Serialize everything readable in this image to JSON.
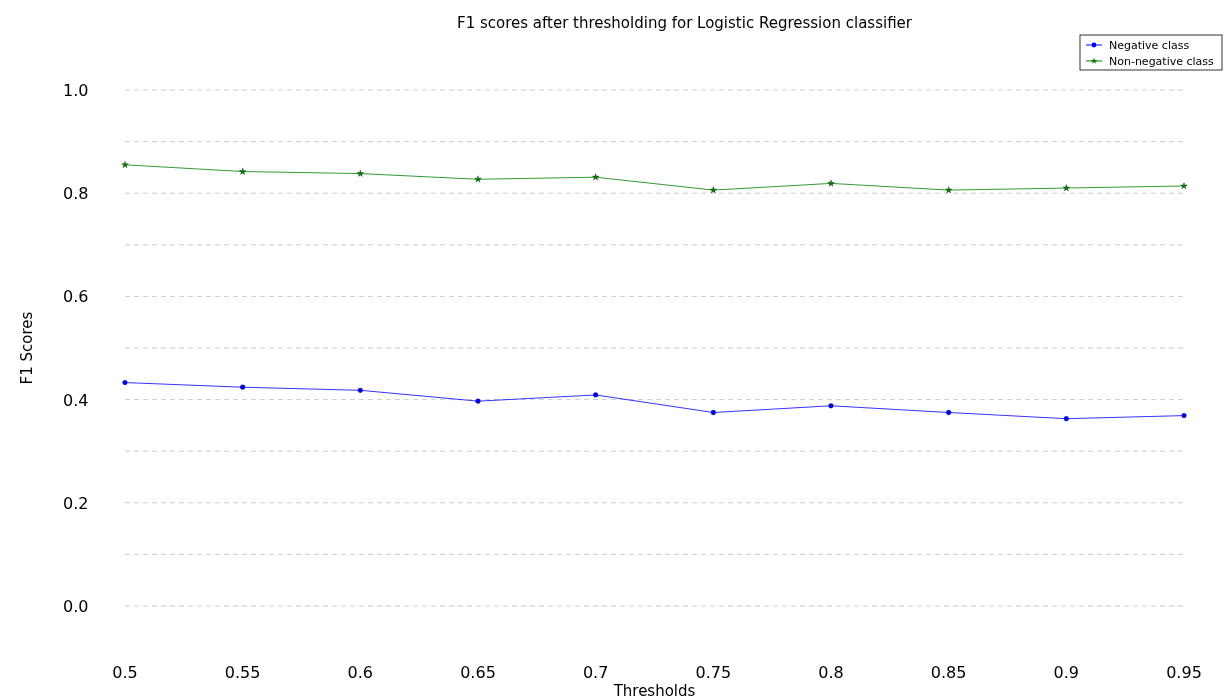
{
  "chart_data": {
    "type": "line",
    "title": "F1 scores after thresholding for Logistic Regression classifier",
    "xlabel": "Thresholds",
    "ylabel": "F1 Scores",
    "x": [
      0.5,
      0.55,
      0.6,
      0.65,
      0.7,
      0.75,
      0.8,
      0.85,
      0.9,
      0.95
    ],
    "series": [
      {
        "name": "Negative class",
        "color": "#0000ff",
        "marker": "circle",
        "values": [
          0.433,
          0.424,
          0.418,
          0.397,
          0.409,
          0.375,
          0.388,
          0.375,
          0.363,
          0.369
        ]
      },
      {
        "name": "Non-negative class",
        "color": "#008000",
        "marker": "star",
        "values": [
          0.855,
          0.842,
          0.838,
          0.827,
          0.831,
          0.806,
          0.819,
          0.806,
          0.81,
          0.814
        ]
      }
    ],
    "xlim": [
      0.5,
      0.95
    ],
    "xticks": [
      0.5,
      0.55,
      0.6,
      0.65,
      0.7,
      0.75,
      0.8,
      0.85,
      0.9,
      0.95
    ],
    "ylim": [
      0,
      1
    ],
    "yticks": [
      {
        "value": 0,
        "label": "0.0"
      },
      {
        "value": 0.1,
        "label": null
      },
      0.2,
      {
        "value": 0.3,
        "label": null
      },
      0.4,
      {
        "value": 0.5,
        "label": null
      },
      0.6,
      {
        "value": 0.7,
        "label": null
      },
      0.8,
      {
        "value": 0.9,
        "label": null
      },
      {
        "value": 1,
        "label": "1.0"
      }
    ],
    "grid": "y",
    "legend": "top right",
    "line_style": "solid"
  }
}
